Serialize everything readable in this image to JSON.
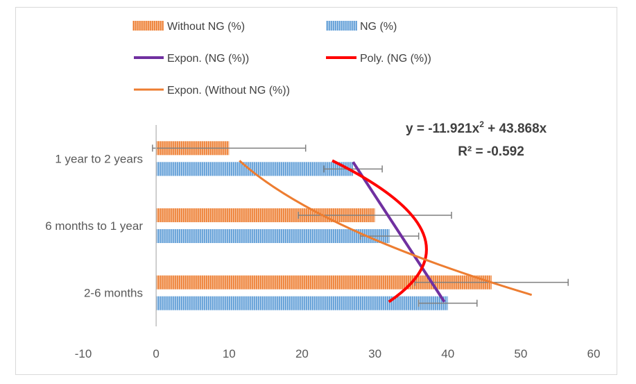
{
  "chart_data": {
    "type": "bar",
    "orientation": "horizontal",
    "categories": [
      "2-6 months",
      "6 months to 1 year",
      "1 year to 2 years"
    ],
    "series": [
      {
        "name": "Without NG (%)",
        "values": [
          46,
          30,
          10
        ],
        "errors": [
          10.5,
          10.5,
          10.5
        ],
        "color": "#ed7d31",
        "pattern": "vertical-stripes"
      },
      {
        "name": "NG (%)",
        "values": [
          40,
          32,
          27
        ],
        "errors": [
          4,
          4,
          4
        ],
        "color": "#5b9bd5",
        "pattern": "vertical-stripes"
      }
    ],
    "trendlines": [
      {
        "name": "Expon. (NG (%))",
        "type": "exponential",
        "of": "NG (%)",
        "color": "#7030a0"
      },
      {
        "name": "Poly. (NG (%))",
        "type": "polynomial-2",
        "of": "NG (%)",
        "color": "#ff0000"
      },
      {
        "name": "Expon. (Without NG (%))",
        "type": "exponential",
        "of": "Without NG (%)",
        "color": "#ed7d31"
      }
    ],
    "xlim": [
      -10,
      60
    ],
    "xticks": [
      "-10",
      "0",
      "10",
      "20",
      "30",
      "40",
      "50",
      "60"
    ],
    "annotation": {
      "equation_main": "y = -11.921x",
      "equation_sup": "2",
      "equation_rest": " + 43.868x",
      "r_squared": "R² = -0.592"
    },
    "legend_position": "top",
    "grid": false
  }
}
